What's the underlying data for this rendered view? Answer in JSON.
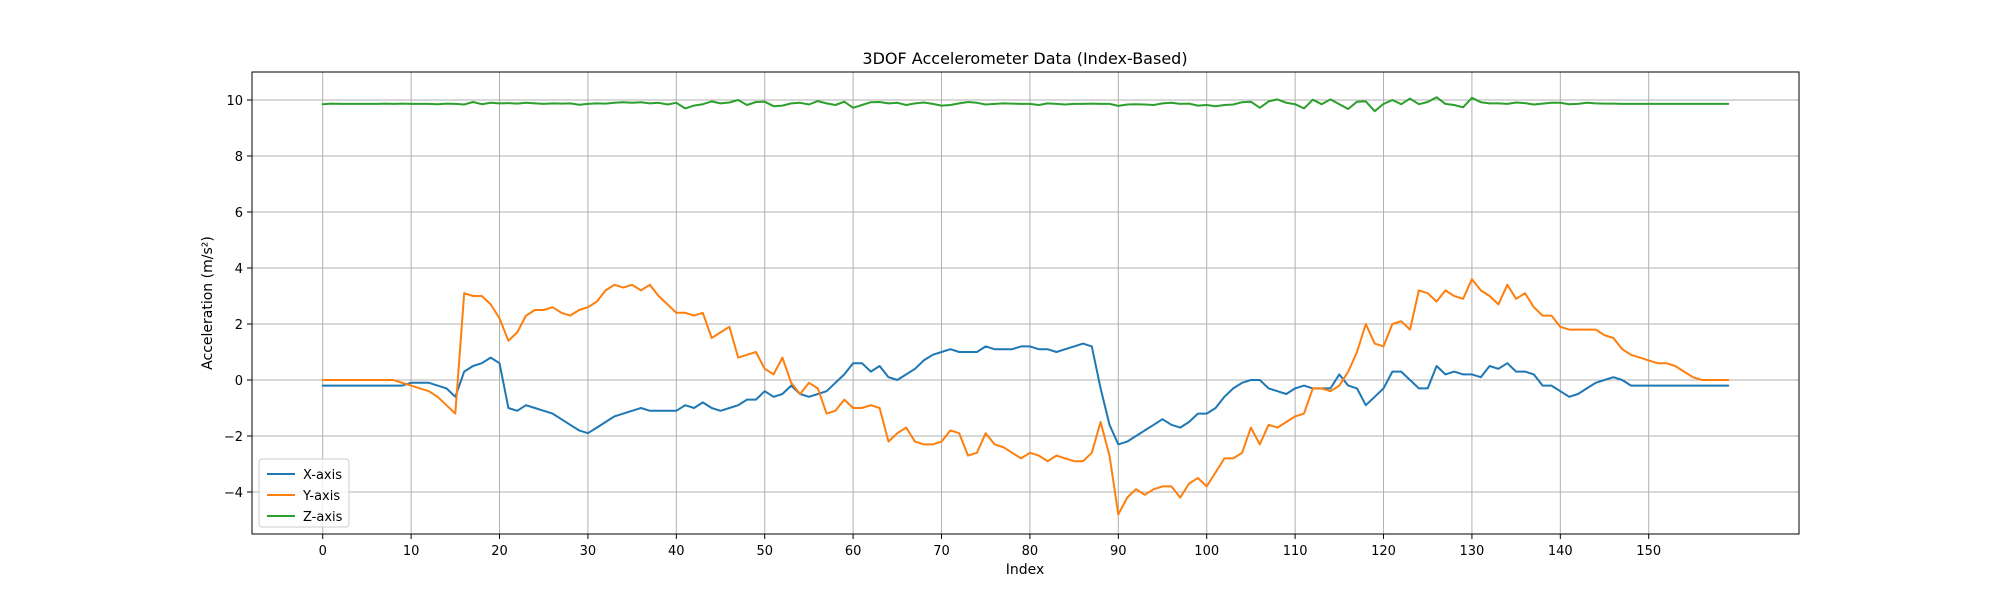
{
  "chart_data": {
    "type": "line",
    "title": "3DOF Accelerometer Data (Index-Based)",
    "xlabel": "Index",
    "ylabel": "Acceleration (m/s²)",
    "xlim": [
      -8,
      167
    ],
    "ylim": [
      -5.5,
      11
    ],
    "xticks": [
      0,
      10,
      20,
      30,
      40,
      50,
      60,
      70,
      80,
      90,
      100,
      110,
      120,
      130,
      140,
      150
    ],
    "yticks": [
      -4,
      -2,
      0,
      2,
      4,
      6,
      8,
      10
    ],
    "grid": true,
    "legend": "lower-left",
    "colors": {
      "X-axis": "#1f77b4",
      "Y-axis": "#ff7f0e",
      "Z-axis": "#2ca02c"
    },
    "series": [
      {
        "name": "X-axis",
        "values": [
          -0.2,
          -0.2,
          -0.2,
          -0.2,
          -0.2,
          -0.2,
          -0.2,
          -0.2,
          -0.2,
          -0.2,
          -0.1,
          -0.1,
          -0.1,
          -0.2,
          -0.3,
          -0.6,
          0.3,
          0.5,
          0.6,
          0.8,
          0.6,
          -1.0,
          -1.1,
          -0.9,
          -1.0,
          -1.1,
          -1.2,
          -1.4,
          -1.6,
          -1.8,
          -1.9,
          -1.7,
          -1.5,
          -1.3,
          -1.2,
          -1.1,
          -1.0,
          -1.1,
          -1.1,
          -1.1,
          -1.1,
          -0.9,
          -1.0,
          -0.8,
          -1.0,
          -1.1,
          -1.0,
          -0.9,
          -0.7,
          -0.7,
          -0.4,
          -0.6,
          -0.5,
          -0.2,
          -0.5,
          -0.6,
          -0.5,
          -0.4,
          -0.1,
          0.2,
          0.6,
          0.6,
          0.3,
          0.5,
          0.1,
          0.0,
          0.2,
          0.4,
          0.7,
          0.9,
          1.0,
          1.1,
          1.0,
          1.0,
          1.0,
          1.2,
          1.1,
          1.1,
          1.1,
          1.2,
          1.2,
          1.1,
          1.1,
          1.0,
          1.1,
          1.2,
          1.3,
          1.2,
          -0.3,
          -1.6,
          -2.3,
          -2.2,
          -2.0,
          -1.8,
          -1.6,
          -1.4,
          -1.6,
          -1.7,
          -1.5,
          -1.2,
          -1.2,
          -1.0,
          -0.6,
          -0.3,
          -0.1,
          0.0,
          0.0,
          -0.3,
          -0.4,
          -0.5,
          -0.3,
          -0.2,
          -0.3,
          -0.3,
          -0.3,
          0.2,
          -0.2,
          -0.3,
          -0.9,
          -0.6,
          -0.3,
          0.3,
          0.3,
          0.0,
          -0.3,
          -0.3,
          0.5,
          0.2,
          0.3,
          0.2,
          0.2,
          0.1,
          0.5,
          0.4,
          0.6,
          0.3,
          0.3,
          0.2,
          -0.2,
          -0.2,
          -0.4,
          -0.6,
          -0.5,
          -0.3,
          -0.1,
          0.0,
          0.1,
          0.0,
          -0.2,
          -0.2,
          -0.2,
          -0.2,
          -0.2,
          -0.2,
          -0.2,
          -0.2,
          -0.2,
          -0.2,
          -0.2,
          -0.2
        ]
      },
      {
        "name": "Y-axis",
        "values": [
          0.0,
          0.0,
          0.0,
          0.0,
          0.0,
          0.0,
          0.0,
          0.0,
          0.0,
          -0.1,
          -0.2,
          -0.3,
          -0.4,
          -0.6,
          -0.9,
          -1.2,
          3.1,
          3.0,
          3.0,
          2.7,
          2.2,
          1.4,
          1.7,
          2.3,
          2.5,
          2.5,
          2.6,
          2.4,
          2.3,
          2.5,
          2.6,
          2.8,
          3.2,
          3.4,
          3.3,
          3.4,
          3.2,
          3.4,
          3.0,
          2.7,
          2.4,
          2.4,
          2.3,
          2.4,
          1.5,
          1.7,
          1.9,
          0.8,
          0.9,
          1.0,
          0.4,
          0.2,
          0.8,
          -0.1,
          -0.5,
          -0.1,
          -0.3,
          -1.2,
          -1.1,
          -0.7,
          -1.0,
          -1.0,
          -0.9,
          -1.0,
          -2.2,
          -1.9,
          -1.7,
          -2.2,
          -2.3,
          -2.3,
          -2.2,
          -1.8,
          -1.9,
          -2.7,
          -2.6,
          -1.9,
          -2.3,
          -2.4,
          -2.6,
          -2.8,
          -2.6,
          -2.7,
          -2.9,
          -2.7,
          -2.8,
          -2.9,
          -2.9,
          -2.6,
          -1.5,
          -2.7,
          -4.8,
          -4.2,
          -3.9,
          -4.1,
          -3.9,
          -3.8,
          -3.8,
          -4.2,
          -3.7,
          -3.5,
          -3.8,
          -3.3,
          -2.8,
          -2.8,
          -2.6,
          -1.7,
          -2.3,
          -1.6,
          -1.7,
          -1.5,
          -1.3,
          -1.2,
          -0.3,
          -0.3,
          -0.4,
          -0.2,
          0.3,
          1.0,
          2.0,
          1.3,
          1.2,
          2.0,
          2.1,
          1.8,
          3.2,
          3.1,
          2.8,
          3.2,
          3.0,
          2.9,
          3.6,
          3.2,
          3.0,
          2.7,
          3.4,
          2.9,
          3.1,
          2.6,
          2.3,
          2.3,
          1.9,
          1.8,
          1.8,
          1.8,
          1.8,
          1.6,
          1.5,
          1.1,
          0.9,
          0.8,
          0.7,
          0.6,
          0.6,
          0.5,
          0.3,
          0.1,
          0.0,
          0.0,
          0.0,
          0.0
        ]
      },
      {
        "name": "Z-axis",
        "values": [
          9.85,
          9.87,
          9.86,
          9.86,
          9.86,
          9.86,
          9.86,
          9.87,
          9.86,
          9.87,
          9.86,
          9.86,
          9.86,
          9.85,
          9.87,
          9.86,
          9.84,
          9.93,
          9.85,
          9.9,
          9.88,
          9.89,
          9.87,
          9.9,
          9.88,
          9.86,
          9.88,
          9.87,
          9.88,
          9.83,
          9.86,
          9.88,
          9.87,
          9.9,
          9.92,
          9.9,
          9.92,
          9.88,
          9.9,
          9.84,
          9.9,
          9.7,
          9.8,
          9.85,
          9.95,
          9.88,
          9.91,
          10.0,
          9.82,
          9.93,
          9.94,
          9.78,
          9.8,
          9.88,
          9.9,
          9.84,
          9.96,
          9.88,
          9.82,
          9.94,
          9.72,
          9.82,
          9.92,
          9.93,
          9.88,
          9.9,
          9.82,
          9.88,
          9.91,
          9.86,
          9.8,
          9.82,
          9.88,
          9.93,
          9.9,
          9.84,
          9.86,
          9.88,
          9.87,
          9.86,
          9.86,
          9.82,
          9.88,
          9.86,
          9.84,
          9.86,
          9.86,
          9.87,
          9.86,
          9.86,
          9.79,
          9.84,
          9.85,
          9.84,
          9.82,
          9.88,
          9.9,
          9.86,
          9.87,
          9.8,
          9.82,
          9.78,
          9.82,
          9.84,
          9.92,
          9.94,
          9.72,
          9.95,
          10.02,
          9.9,
          9.85,
          9.7,
          10.01,
          9.85,
          10.02,
          9.85,
          9.68,
          9.94,
          9.95,
          9.6,
          9.86,
          10.0,
          9.85,
          10.05,
          9.85,
          9.93,
          10.1,
          9.86,
          9.82,
          9.74,
          10.08,
          9.92,
          9.88,
          9.88,
          9.86,
          9.91,
          9.89,
          9.84,
          9.87,
          9.9,
          9.9,
          9.85,
          9.86,
          9.9,
          9.88,
          9.87,
          9.87,
          9.86,
          9.86,
          9.86,
          9.86,
          9.86,
          9.86,
          9.86,
          9.86,
          9.86,
          9.86,
          9.86,
          9.86,
          9.86
        ]
      }
    ]
  }
}
